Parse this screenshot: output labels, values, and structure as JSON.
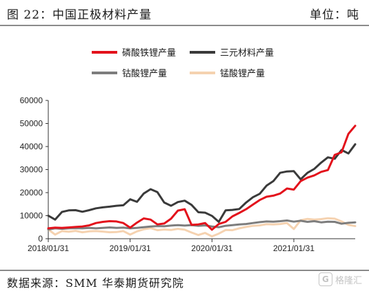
{
  "header": {
    "figure_title": "图 22：中国正极材料产量",
    "unit": "单位：吨"
  },
  "footer": {
    "source": "数据来源：SMM  华泰期货研究院",
    "watermark": "格隆汇"
  },
  "chart_data": {
    "type": "line",
    "ylim": [
      0,
      60000
    ],
    "yticks": [
      0,
      10000,
      20000,
      30000,
      40000,
      50000,
      60000
    ],
    "ytick_labels": [
      "0",
      "10000",
      "20000",
      "30000",
      "40000",
      "50000",
      "60000"
    ],
    "x_start": "2018-01",
    "x_end": "2021-10",
    "xticks": [
      "2018-01",
      "2019-01",
      "2020-01",
      "2021-01"
    ],
    "xtick_labels": [
      "2018/01/31",
      "2019/01/31",
      "2020/01/31",
      "2021/01/31"
    ],
    "grid": false,
    "legend": "top",
    "series": [
      {
        "name": "磷酸铁锂产量",
        "color": "#e3111b",
        "width": 3,
        "values": [
          4500,
          4800,
          4700,
          4900,
          5100,
          5300,
          5800,
          6800,
          7300,
          7600,
          7500,
          6800,
          4800,
          7000,
          8800,
          8300,
          6200,
          6600,
          8700,
          12200,
          12800,
          6000,
          6200,
          6800,
          3900,
          6400,
          7300,
          9700,
          11200,
          12800,
          14800,
          16800,
          18200,
          18700,
          19600,
          21800,
          21300,
          25000,
          26500,
          27500,
          29000,
          29800,
          36400,
          37500,
          45500,
          49000
        ]
      },
      {
        "name": "三元材料产量",
        "color": "#3a3a3a",
        "width": 3,
        "values": [
          10000,
          8300,
          11600,
          12300,
          12400,
          11700,
          12400,
          13200,
          13600,
          13900,
          14300,
          14500,
          17100,
          16000,
          19600,
          21500,
          20200,
          15700,
          14300,
          15900,
          16500,
          14700,
          11500,
          11300,
          9900,
          7300,
          12300,
          12500,
          12900,
          15700,
          18000,
          19500,
          23000,
          25000,
          28600,
          29200,
          29300,
          25800,
          28600,
          30300,
          33000,
          35300,
          34700,
          38500,
          37000,
          41000
        ]
      },
      {
        "name": "钴酸锂产量",
        "color": "#7d7d7d",
        "width": 3,
        "values": [
          4000,
          4500,
          4300,
          4500,
          4600,
          4500,
          4700,
          4500,
          4700,
          4900,
          4700,
          4800,
          4500,
          4700,
          5000,
          5300,
          5500,
          5400,
          5700,
          5900,
          5700,
          5900,
          5600,
          5800,
          5300,
          5000,
          5600,
          5900,
          6200,
          6400,
          6800,
          7200,
          7500,
          7400,
          7600,
          7900,
          7400,
          7800,
          7300,
          7600,
          7100,
          7400,
          7300,
          6500,
          6900,
          7100
        ]
      },
      {
        "name": "锰酸锂产量",
        "color": "#f5d2b0",
        "width": 3,
        "values": [
          4000,
          1800,
          3300,
          3000,
          3400,
          2800,
          3200,
          3300,
          3100,
          2800,
          2900,
          3300,
          1800,
          3200,
          4100,
          4600,
          3700,
          4000,
          3800,
          4300,
          3900,
          2700,
          1600,
          2500,
          1000,
          2200,
          3800,
          3700,
          4500,
          5100,
          5600,
          5800,
          6300,
          6200,
          6400,
          6800,
          4200,
          8000,
          8600,
          8300,
          8500,
          8900,
          8700,
          7500,
          6000,
          5500
        ]
      }
    ]
  }
}
